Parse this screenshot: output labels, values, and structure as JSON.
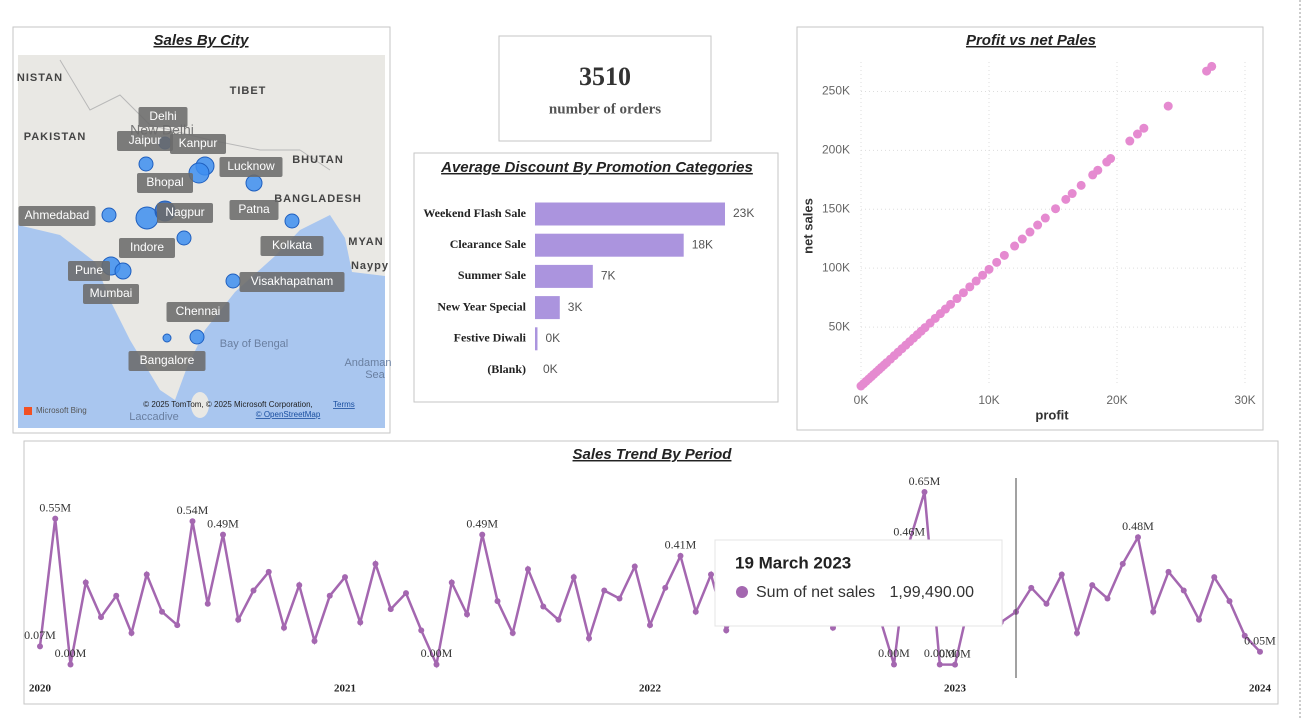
{
  "map": {
    "title": "Sales By City",
    "cities": [
      "Delhi",
      "Jaipur",
      "Kanpur",
      "Lucknow",
      "Bhopal",
      "Nagpur",
      "Patna",
      "Ahmedabad",
      "Kolkata",
      "Indore",
      "Pune",
      "Mumbai",
      "Visakhapatnam",
      "Chennai",
      "Bangalore"
    ],
    "places": [
      "NISTAN",
      "PAKISTAN",
      "TIBET",
      "New Delhi",
      "BHUTAN",
      "BANGLADESH",
      "MYAN",
      "Naypy",
      "Bay of Bengal",
      "Andaman",
      "Sea",
      "Laccadive"
    ],
    "attribution": {
      "logo": "Microsoft Bing",
      "copyright": "© 2025 TomTom, © 2025 Microsoft Corporation,",
      "terms": "Terms",
      "osm": "© OpenStreetMap"
    }
  },
  "kpi": {
    "value": 3510,
    "label": "number of orders"
  },
  "chart_data": [
    {
      "type": "bar",
      "title": "Average Discount By Promotion Categories",
      "categories": [
        "Weekend Flash Sale",
        "Clearance Sale",
        "Summer Sale",
        "New Year Special",
        "Festive Diwali",
        "(Blank)"
      ],
      "values": [
        23000,
        18000,
        7000,
        3000,
        300,
        0
      ],
      "value_labels": [
        "23K",
        "18K",
        "7K",
        "3K",
        "0K",
        "0K"
      ],
      "color": "#ab94de"
    },
    {
      "type": "scatter",
      "title": "Profit vs net Pales",
      "x_label": "profit",
      "y_label": "net sales",
      "color": "#e58ad0",
      "grid": true,
      "x": [
        0,
        200,
        400,
        600,
        800,
        1000,
        1200,
        1400,
        1600,
        1800,
        2000,
        2300,
        2600,
        2900,
        3200,
        3500,
        3800,
        4100,
        4400,
        4700,
        5000,
        5400,
        5800,
        6200,
        6600,
        7000,
        7500,
        8000,
        8500,
        9000,
        9500,
        10000,
        10600,
        11200,
        12000,
        12600,
        13200,
        13800,
        14400,
        15200,
        16000,
        16500,
        17200,
        18100,
        18500,
        19200,
        19500,
        21000,
        21600,
        22100,
        24000,
        27000,
        27400
      ],
      "values": [
        0,
        1980,
        3960,
        5940,
        7920,
        9900,
        11880,
        13860,
        15840,
        17820,
        19800,
        22770,
        25740,
        28710,
        31680,
        34650,
        37620,
        40590,
        43560,
        46530,
        49500,
        53460,
        57420,
        61380,
        65340,
        69300,
        74250,
        79200,
        84150,
        89100,
        94050,
        99000,
        104940,
        110880,
        118800,
        124740,
        130680,
        136620,
        142560,
        150480,
        158400,
        163350,
        170280,
        179190,
        183150,
        190080,
        193050,
        207900,
        213840,
        218790,
        237600,
        267300,
        271260
      ],
      "xlim": [
        0,
        30000
      ],
      "xticks": [
        {
          "value": 0,
          "label": "0K"
        },
        {
          "value": 10000,
          "label": "10K"
        },
        {
          "value": 20000,
          "label": "20K"
        },
        {
          "value": 30000,
          "label": "30K"
        }
      ],
      "ylim": [
        0,
        275000
      ],
      "yticks": [
        {
          "value": 50000,
          "label": "50K"
        },
        {
          "value": 100000,
          "label": "100K"
        },
        {
          "value": 150000,
          "label": "150K"
        },
        {
          "value": 200000,
          "label": "200K"
        },
        {
          "value": 250000,
          "label": "250K"
        }
      ]
    },
    {
      "type": "line",
      "title": "Sales Trend By Period",
      "x": [
        2020,
        2020.05,
        2020.1,
        2020.15,
        2020.2,
        2020.25,
        2020.3,
        2020.35,
        2020.4,
        2020.45,
        2020.5,
        2020.55,
        2020.6,
        2020.65,
        2020.7,
        2020.75,
        2020.8,
        2020.85,
        2020.9,
        2020.95,
        2021,
        2021.05,
        2021.1,
        2021.15,
        2021.2,
        2021.25,
        2021.3,
        2021.35,
        2021.4,
        2021.45,
        2021.5,
        2021.55,
        2021.6,
        2021.65,
        2021.7,
        2021.75,
        2021.8,
        2021.85,
        2021.9,
        2021.95,
        2022,
        2022.05,
        2022.1,
        2022.15,
        2022.2,
        2022.25,
        2022.3,
        2022.35,
        2022.4,
        2022.45,
        2022.5,
        2022.55,
        2022.6,
        2022.65,
        2022.7,
        2022.75,
        2022.8,
        2022.85,
        2022.9,
        2022.95,
        2023,
        2023.05,
        2023.1,
        2023.15,
        2023.2,
        2023.25,
        2023.3,
        2023.35,
        2023.4,
        2023.45,
        2023.5,
        2023.55,
        2023.6,
        2023.65,
        2023.7,
        2023.75,
        2023.8,
        2023.85,
        2023.9,
        2023.95,
        2024
      ],
      "series": [
        {
          "name": "Sum of net sales",
          "color": "#a467b0",
          "values": [
            70000,
            550000,
            2000,
            310000,
            180000,
            260000,
            120000,
            340000,
            200000,
            150000,
            540000,
            230000,
            490000,
            170000,
            280000,
            350000,
            140000,
            300000,
            90000,
            260000,
            330000,
            160000,
            380000,
            210000,
            270000,
            130000,
            2000,
            310000,
            190000,
            490000,
            240000,
            120000,
            360000,
            220000,
            170000,
            330000,
            100000,
            280000,
            250000,
            370000,
            150000,
            290000,
            410000,
            200000,
            340000,
            130000,
            260000,
            380000,
            180000,
            300000,
            220000,
            350000,
            140000,
            270000,
            320000,
            190000,
            2000,
            460000,
            650000,
            2000,
            1500,
            250000,
            440000,
            160000,
            199490,
            290000,
            230000,
            340000,
            120000,
            300000,
            250000,
            380000,
            480000,
            200000,
            350000,
            280000,
            170000,
            330000,
            240000,
            110000,
            50000
          ],
          "value_labels": [
            "0.07M",
            "0.55M",
            "0.00M",
            null,
            null,
            null,
            null,
            null,
            null,
            null,
            "0.54M",
            null,
            "0.49M",
            null,
            null,
            null,
            null,
            null,
            null,
            null,
            null,
            null,
            null,
            null,
            null,
            null,
            "0.00M",
            null,
            null,
            "0.49M",
            null,
            null,
            null,
            null,
            null,
            null,
            null,
            null,
            null,
            null,
            null,
            null,
            "0.41M",
            null,
            null,
            null,
            null,
            null,
            null,
            null,
            null,
            null,
            null,
            null,
            null,
            null,
            "0.00M",
            "0.46M",
            "0.65M",
            "0.00M",
            "0.00M",
            null,
            null,
            null,
            null,
            null,
            null,
            null,
            null,
            null,
            null,
            null,
            "0.48M",
            null,
            null,
            null,
            null,
            null,
            null,
            null,
            "0.05M"
          ]
        }
      ],
      "xlim": [
        2020,
        2024
      ],
      "xticks": [
        2020,
        2021,
        2022,
        2023,
        2024
      ],
      "tooltip": {
        "title": "19 March 2023",
        "x": 2023.2,
        "value_label": "1,99,490.00"
      }
    }
  ]
}
